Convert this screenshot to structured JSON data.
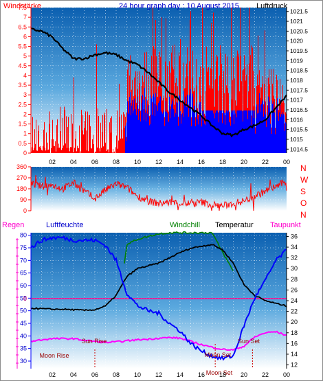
{
  "chart_data": [
    {
      "type": "line",
      "title": "24 hour graph day : 10 August 2015",
      "left_axis_label": "Windstärke",
      "right_axis_label": "Luftdruck",
      "x_tick_labels": [
        "02",
        "04",
        "06",
        "08",
        "10",
        "12",
        "14",
        "16",
        "18",
        "20",
        "22",
        "00"
      ],
      "left_tick_labels": [
        "0",
        "0.5",
        "1",
        "1.5",
        "2",
        "2.5",
        "3",
        "3.5",
        "4",
        "4.5",
        "5",
        "5.5",
        "6",
        "6.5",
        "7",
        "7.5"
      ],
      "ylim_left": [
        0,
        7.5
      ],
      "right_tick_labels": [
        "1014.5",
        "1015",
        "1015.5",
        "1016",
        "1016.5",
        "1017",
        "1017.5",
        "1018",
        "1018.5",
        "1019",
        "1019.5",
        "1020",
        "1020.5",
        "1021",
        "1021.5"
      ],
      "ylim_right": [
        1014.3,
        1021.7
      ],
      "series": [
        {
          "name": "Luftdruck",
          "color": "#000000",
          "x": [
            0,
            1,
            2,
            3,
            4,
            5,
            6,
            7,
            8,
            9,
            10,
            11,
            12,
            13,
            14,
            15,
            16,
            17,
            18,
            19,
            20,
            21,
            22,
            23,
            24
          ],
          "y": [
            1020.6,
            1020.5,
            1020.2,
            1019.6,
            1019.1,
            1019.1,
            1019.3,
            1019.4,
            1019.3,
            1019.0,
            1018.8,
            1018.4,
            1017.9,
            1017.4,
            1017.0,
            1016.6,
            1016.2,
            1015.7,
            1015.3,
            1015.2,
            1015.5,
            1015.7,
            1016.0,
            1016.6,
            1017.2
          ]
        },
        {
          "name": "Windstärke",
          "color": "#ff0000",
          "note_values": "gust values 0-7.5 Bft"
        },
        {
          "name": "Windstärke (blau)",
          "color": "#0000ff"
        }
      ],
      "grid": true
    },
    {
      "type": "line",
      "right_labels": [
        "N",
        "W",
        "S",
        "O",
        "N"
      ],
      "left_tick_labels": [
        "0",
        "90",
        "180",
        "270",
        "360"
      ],
      "ylim": [
        0,
        360
      ],
      "series": [
        {
          "name": "Windrichtung",
          "color": "#ff0000",
          "x": [
            0,
            1,
            2,
            3,
            4,
            5,
            6,
            7,
            8,
            9,
            10,
            11,
            12,
            13,
            14,
            15,
            16,
            17,
            18,
            19,
            20,
            21,
            22,
            23,
            24
          ],
          "y": [
            220,
            200,
            210,
            180,
            230,
            160,
            100,
            170,
            220,
            190,
            120,
            80,
            60,
            70,
            60,
            60,
            70,
            50,
            40,
            60,
            80,
            120,
            160,
            200,
            240
          ]
        }
      ]
    },
    {
      "type": "line",
      "labels": {
        "regen": "Regen",
        "feuchte": "Luftfeuchte",
        "windchill": "Windchill",
        "temperatur": "Temperatur",
        "taupunkt": "Taupunkt"
      },
      "left_tick_labels": [
        "30",
        "35",
        "40",
        "45",
        "50",
        "55",
        "60",
        "65",
        "70",
        "75",
        "80"
      ],
      "ylim_left": [
        27,
        81
      ],
      "right_tick_labels": [
        "12",
        "14",
        "16",
        "18",
        "20",
        "22",
        "24",
        "26",
        "28",
        "30",
        "32",
        "34",
        "36"
      ],
      "ylim_right": [
        11.3,
        36.7
      ],
      "regen_axis_label": "0",
      "annotations": [
        "Moon Rise",
        "Sun Rise",
        "Sun Set",
        "Moon Set",
        "Moon Set"
      ],
      "x_tick_labels": [
        "02",
        "04",
        "06",
        "08",
        "10",
        "12",
        "14",
        "16",
        "18",
        "20",
        "22",
        "00"
      ],
      "series": [
        {
          "name": "Luftfeuchte",
          "color": "#0000ff",
          "x": [
            0,
            1,
            2,
            3,
            4,
            5,
            6,
            7,
            8,
            9,
            10,
            11,
            12,
            13,
            14,
            15,
            16,
            17,
            18,
            19,
            20,
            21,
            22,
            23,
            24
          ],
          "y": [
            75,
            78,
            79,
            79,
            78,
            78,
            78,
            76,
            70,
            57,
            52,
            50,
            49,
            45,
            42,
            37,
            34,
            32,
            31,
            32,
            44,
            55,
            62,
            70,
            74
          ]
        },
        {
          "name": "Temperatur",
          "color": "#000000",
          "x": [
            0,
            1,
            2,
            3,
            4,
            5,
            6,
            7,
            8,
            9,
            10,
            11,
            12,
            13,
            14,
            15,
            16,
            17,
            18,
            19,
            20,
            21,
            22,
            23,
            24
          ],
          "y": [
            22.6,
            22.5,
            22.4,
            22.4,
            22.3,
            22.2,
            22.3,
            23.0,
            25.0,
            28.5,
            30.0,
            30.5,
            31.0,
            32.0,
            33.0,
            33.8,
            34.2,
            34.5,
            33.5,
            31.0,
            27.0,
            25.0,
            24.0,
            23.5,
            23.0
          ]
        },
        {
          "name": "Windchill",
          "color": "#008000",
          "x": [
            8.7,
            9,
            10,
            11,
            12,
            13,
            14,
            15,
            16,
            17,
            18,
            19
          ],
          "y": [
            30.0,
            34.5,
            35.5,
            36.0,
            36.5,
            36.7,
            36.7,
            36.7,
            36.7,
            36.7,
            33.0,
            29.5
          ]
        },
        {
          "name": "Taupunkt",
          "color": "#ff00ff",
          "x": [
            0,
            1,
            2,
            3,
            4,
            5,
            6,
            7,
            8,
            9,
            10,
            11,
            12,
            13,
            14,
            15,
            16,
            17,
            18,
            19,
            20,
            21,
            22,
            23,
            24
          ],
          "y": [
            16.4,
            16.7,
            16.9,
            16.9,
            16.9,
            16.6,
            16.4,
            16.2,
            16.3,
            16.5,
            16.7,
            16.8,
            17.0,
            17.1,
            17.0,
            16.4,
            15.8,
            15.3,
            14.9,
            14.8,
            15.5,
            17.2,
            18.0,
            18.2,
            17.5
          ]
        },
        {
          "name": "Regen",
          "color": "#ff0088",
          "y_level": "0"
        }
      ]
    }
  ]
}
